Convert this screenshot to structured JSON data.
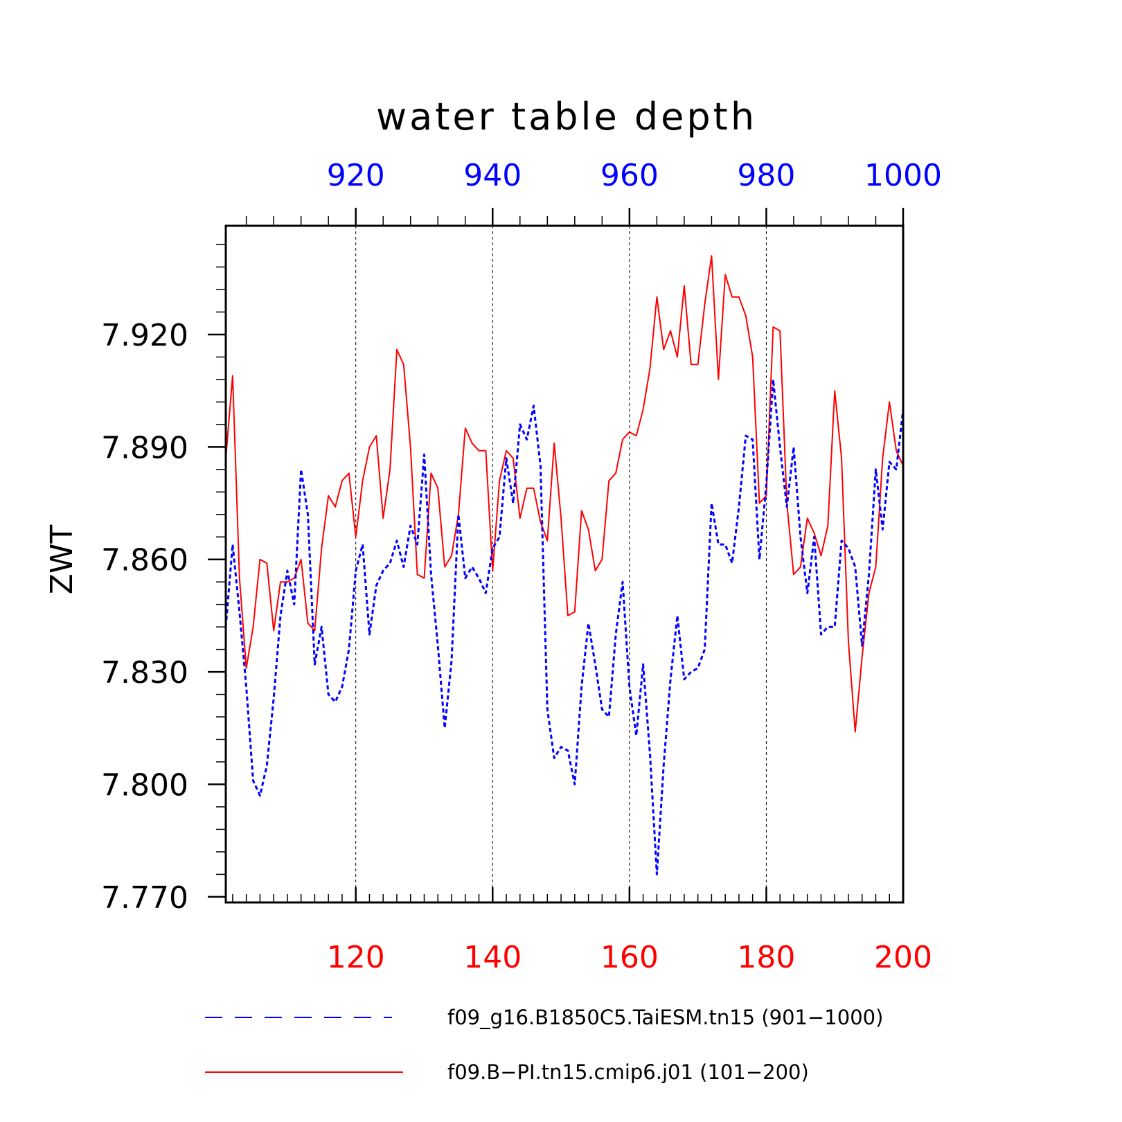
{
  "chart_data": {
    "type": "line",
    "title": "water table depth",
    "ylabel": "ZWT",
    "ylim": [
      7.7685,
      7.949
    ],
    "yticks": [
      "7.770",
      "7.800",
      "7.830",
      "7.860",
      "7.890",
      "7.920"
    ],
    "ytick_values": [
      7.77,
      7.8,
      7.83,
      7.86,
      7.89,
      7.92
    ],
    "bottom_axis": {
      "range": [
        101,
        200
      ],
      "ticks": [
        "120",
        "140",
        "160",
        "180",
        "200"
      ],
      "tick_values": [
        120,
        140,
        160,
        180,
        200
      ],
      "color": "#ff0000"
    },
    "top_axis": {
      "range": [
        901,
        1000
      ],
      "ticks": [
        "920",
        "940",
        "960",
        "980",
        "1000"
      ],
      "tick_values": [
        920,
        940,
        960,
        980,
        1000
      ],
      "color": "#0000ff"
    },
    "grid": "vertical dotted at major ticks",
    "legend_position": "bottom",
    "series": [
      {
        "name": "f09_g16.B1850C5.TaiESM.tn15 (901−1000)",
        "color": "#0000ff",
        "style": "dashed",
        "axis": "top",
        "x_start": 901,
        "values": [
          7.842,
          7.864,
          7.846,
          7.826,
          7.801,
          7.797,
          7.805,
          7.823,
          7.845,
          7.857,
          7.848,
          7.884,
          7.872,
          7.832,
          7.842,
          7.824,
          7.822,
          7.826,
          7.836,
          7.857,
          7.864,
          7.84,
          7.853,
          7.857,
          7.859,
          7.865,
          7.858,
          7.869,
          7.864,
          7.888,
          7.856,
          7.837,
          7.815,
          7.833,
          7.872,
          7.855,
          7.858,
          7.855,
          7.851,
          7.863,
          7.866,
          7.887,
          7.875,
          7.896,
          7.892,
          7.901,
          7.885,
          7.82,
          7.807,
          7.81,
          7.809,
          7.8,
          7.826,
          7.843,
          7.832,
          7.82,
          7.818,
          7.84,
          7.854,
          7.826,
          7.813,
          7.832,
          7.808,
          7.776,
          7.805,
          7.828,
          7.845,
          7.828,
          7.83,
          7.831,
          7.836,
          7.875,
          7.864,
          7.864,
          7.859,
          7.874,
          7.893,
          7.892,
          7.86,
          7.88,
          7.908,
          7.89,
          7.874,
          7.89,
          7.866,
          7.851,
          7.866,
          7.84,
          7.842,
          7.842,
          7.865,
          7.863,
          7.858,
          7.837,
          7.856,
          7.884,
          7.868,
          7.886,
          7.884,
          7.9
        ]
      },
      {
        "name": "f09.B−PI.tn15.cmip6.j01 (101−200)",
        "color": "#ff0000",
        "style": "solid",
        "axis": "bottom",
        "x_start": 101,
        "values": [
          7.887,
          7.909,
          7.855,
          7.831,
          7.842,
          7.86,
          7.859,
          7.841,
          7.854,
          7.854,
          7.855,
          7.86,
          7.843,
          7.841,
          7.863,
          7.877,
          7.874,
          7.881,
          7.883,
          7.866,
          7.881,
          7.89,
          7.893,
          7.871,
          7.884,
          7.916,
          7.912,
          7.89,
          7.856,
          7.855,
          7.883,
          7.879,
          7.858,
          7.861,
          7.872,
          7.895,
          7.891,
          7.889,
          7.889,
          7.857,
          7.881,
          7.889,
          7.887,
          7.871,
          7.879,
          7.879,
          7.87,
          7.865,
          7.891,
          7.871,
          7.845,
          7.846,
          7.873,
          7.868,
          7.857,
          7.86,
          7.881,
          7.883,
          7.892,
          7.894,
          7.893,
          7.9,
          7.911,
          7.93,
          7.916,
          7.921,
          7.914,
          7.933,
          7.912,
          7.912,
          7.928,
          7.941,
          7.908,
          7.936,
          7.93,
          7.93,
          7.925,
          7.914,
          7.875,
          7.877,
          7.922,
          7.921,
          7.875,
          7.856,
          7.858,
          7.871,
          7.867,
          7.861,
          7.869,
          7.905,
          7.887,
          7.838,
          7.814,
          7.834,
          7.851,
          7.858,
          7.887,
          7.902,
          7.889,
          7.885
        ]
      }
    ]
  }
}
